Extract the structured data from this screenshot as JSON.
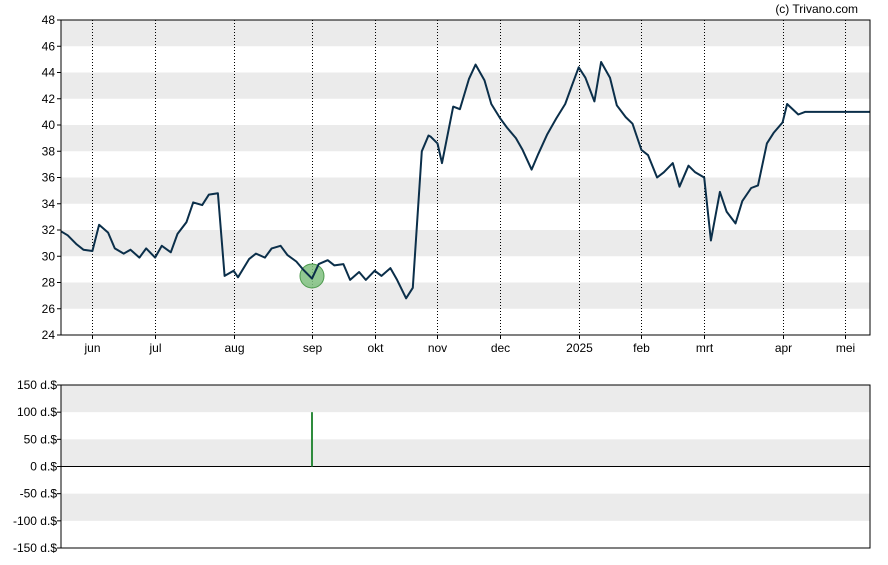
{
  "credit": "(c) Trivano.com",
  "colors": {
    "band": "#ebebeb",
    "background": "#ffffff",
    "price_line": "#0b2f4a",
    "marker_fill": "#7fbf7f",
    "marker_stroke": "#4d9a4d",
    "volume_bar": "#2e8b3c",
    "axis": "#000000"
  },
  "chart_data": [
    {
      "type": "line",
      "title": "",
      "ylim": [
        24,
        48
      ],
      "y_ticks": [
        "24",
        "26",
        "28",
        "30",
        "32",
        "34",
        "36",
        "38",
        "40",
        "42",
        "44",
        "46",
        "48"
      ],
      "x_range": [
        "2024-05-20",
        "2025-05-16"
      ],
      "x_ticks": [
        {
          "label": "jun",
          "date": "2024-06-03"
        },
        {
          "label": "jul",
          "date": "2024-07-01"
        },
        {
          "label": "aug",
          "date": "2024-08-05"
        },
        {
          "label": "sep",
          "date": "2024-09-09"
        },
        {
          "label": "okt",
          "date": "2024-10-07"
        },
        {
          "label": "nov",
          "date": "2024-11-04"
        },
        {
          "label": "dec",
          "date": "2024-12-02"
        },
        {
          "label": "2025",
          "date": "2025-01-06"
        },
        {
          "label": "feb",
          "date": "2025-02-03"
        },
        {
          "label": "mrt",
          "date": "2025-03-03"
        },
        {
          "label": "apr",
          "date": "2025-04-07"
        },
        {
          "label": "mei",
          "date": "2025-05-05"
        }
      ],
      "grid": "horizontal bands, vertical dotted lines at month ticks",
      "series": [
        {
          "x": [
            "2024-05-20",
            "2024-05-23",
            "2024-05-27",
            "2024-05-30",
            "2024-06-03",
            "2024-06-06",
            "2024-06-10",
            "2024-06-13",
            "2024-06-17",
            "2024-06-20",
            "2024-06-24",
            "2024-06-27",
            "2024-07-01",
            "2024-07-04",
            "2024-07-08",
            "2024-07-11",
            "2024-07-15",
            "2024-07-18",
            "2024-07-22",
            "2024-07-25",
            "2024-07-29",
            "2024-08-01",
            "2024-08-05",
            "2024-08-07",
            "2024-08-12",
            "2024-08-15",
            "2024-08-19",
            "2024-08-22",
            "2024-08-26",
            "2024-08-29",
            "2024-09-02",
            "2024-09-05",
            "2024-09-09",
            "2024-09-12",
            "2024-09-16",
            "2024-09-19",
            "2024-09-23",
            "2024-09-26",
            "2024-09-30",
            "2024-10-03",
            "2024-10-07",
            "2024-10-10",
            "2024-10-14",
            "2024-10-17",
            "2024-10-21",
            "2024-10-24",
            "2024-10-28",
            "2024-10-31",
            "2024-11-01",
            "2024-11-04",
            "2024-11-06",
            "2024-11-11",
            "2024-11-14",
            "2024-11-18",
            "2024-11-21",
            "2024-11-25",
            "2024-11-28",
            "2024-12-02",
            "2024-12-05",
            "2024-12-09",
            "2024-12-12",
            "2024-12-16",
            "2024-12-19",
            "2024-12-23",
            "2024-12-27",
            "2024-12-31",
            "2025-01-03",
            "2025-01-06",
            "2025-01-09",
            "2025-01-13",
            "2025-01-16",
            "2025-01-20",
            "2025-01-23",
            "2025-01-27",
            "2025-01-30",
            "2025-02-03",
            "2025-02-06",
            "2025-02-10",
            "2025-02-13",
            "2025-02-17",
            "2025-02-20",
            "2025-02-24",
            "2025-02-27",
            "2025-03-03",
            "2025-03-06",
            "2025-03-10",
            "2025-03-13",
            "2025-03-17",
            "2025-03-20",
            "2025-03-24",
            "2025-03-27",
            "2025-03-31",
            "2025-04-03",
            "2025-04-07",
            "2025-04-09",
            "2025-04-14",
            "2025-04-17",
            "2025-04-22",
            "2025-04-25",
            "2025-04-28",
            "2025-05-01",
            "2025-05-05",
            "2025-05-08",
            "2025-05-12",
            "2025-05-16"
          ],
          "values": [
            31.9,
            31.6,
            30.9,
            30.5,
            30.4,
            32.4,
            31.8,
            30.6,
            30.2,
            30.5,
            29.9,
            30.6,
            29.9,
            30.8,
            30.3,
            31.7,
            32.6,
            34.1,
            33.9,
            34.7,
            34.8,
            28.5,
            28.9,
            28.4,
            29.8,
            30.2,
            29.9,
            30.6,
            30.8,
            30.1,
            29.6,
            29.0,
            28.3,
            29.4,
            29.7,
            29.3,
            29.4,
            28.2,
            28.8,
            28.2,
            28.9,
            28.5,
            29.1,
            28.2,
            26.8,
            27.6,
            38.0,
            39.2,
            39.1,
            38.6,
            37.1,
            41.4,
            41.2,
            43.5,
            44.6,
            43.4,
            41.6,
            40.5,
            39.8,
            39.0,
            38.1,
            36.6,
            37.8,
            39.3,
            40.5,
            41.6,
            43.0,
            44.4,
            43.6,
            41.8,
            44.8,
            43.6,
            41.5,
            40.6,
            40.1,
            38.1,
            37.7,
            36.0,
            36.4,
            37.1,
            35.3,
            36.9,
            36.4,
            36.0,
            31.2,
            34.9,
            33.4,
            32.5,
            34.2,
            35.2,
            35.4,
            38.6,
            39.4,
            40.2,
            41.6,
            40.8,
            41.0,
            41.0,
            41.0,
            41.0,
            41.0,
            41.0,
            41.0,
            41.0,
            41.0
          ]
        }
      ],
      "markers": [
        {
          "date": "2024-09-09",
          "value": 28.5,
          "kind": "event"
        }
      ]
    },
    {
      "type": "bar",
      "title": "",
      "ylim": [
        -150,
        150
      ],
      "y_ticks": [
        "-150 d.$",
        "-100 d.$",
        "-50 d.$",
        "0 d.$",
        "50 d.$",
        "100 d.$",
        "150 d.$"
      ],
      "y_tick_values": [
        -150,
        -100,
        -50,
        0,
        50,
        100,
        150
      ],
      "bars": [
        {
          "date": "2024-09-09",
          "value": 100
        }
      ]
    }
  ]
}
